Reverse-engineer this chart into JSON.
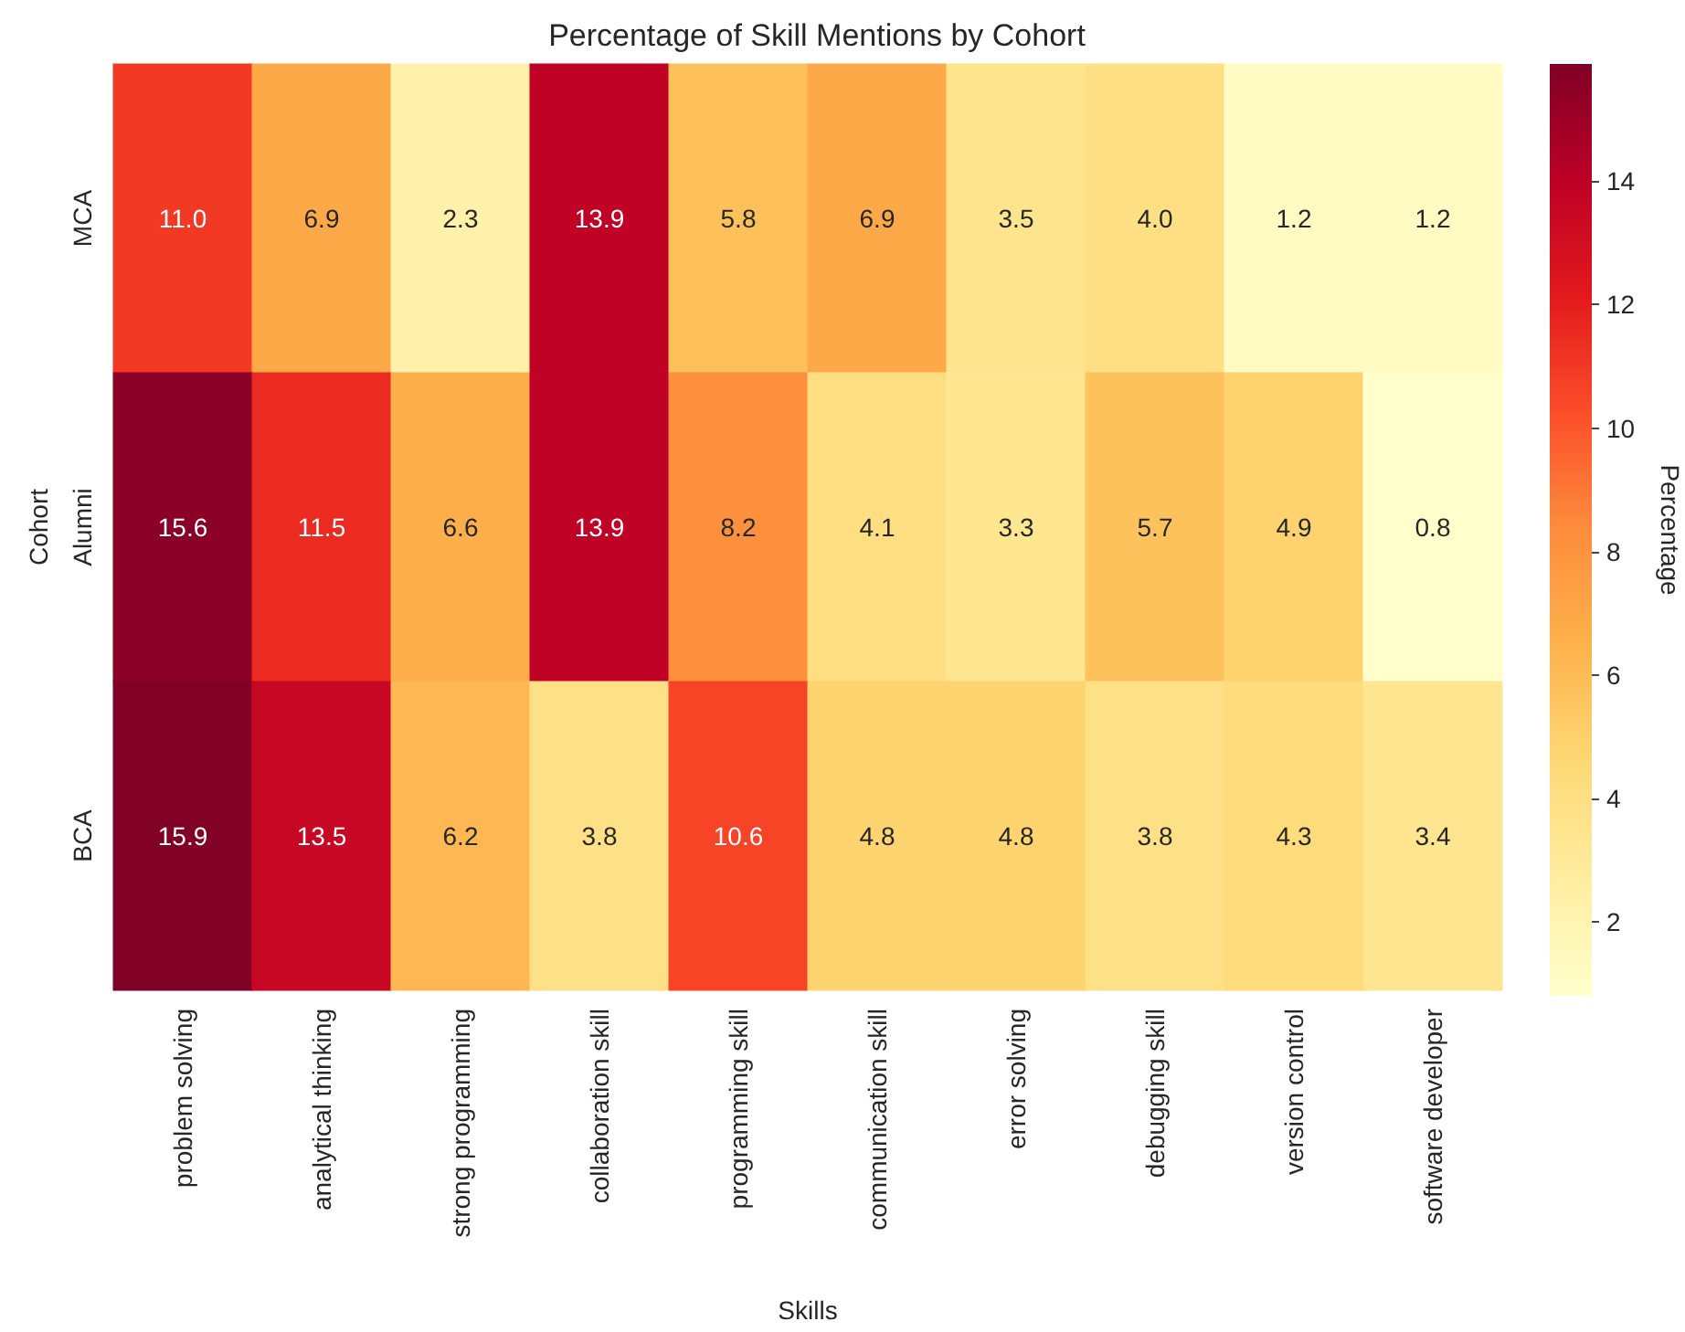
{
  "chart_data": {
    "type": "heatmap",
    "title": "Percentage of Skill Mentions by Cohort",
    "xlabel": "Skills",
    "ylabel": "Cohort",
    "clabel": "Percentage",
    "categories": [
      "problem solving",
      "analytical thinking",
      "strong programming",
      "collaboration skill",
      "programming skill",
      "communication skill",
      "error solving",
      "debugging skill",
      "version control",
      "software developer"
    ],
    "y_categories": [
      "MCA",
      "Alumni",
      "BCA"
    ],
    "cells": [
      [
        11.0,
        6.9,
        2.3,
        13.9,
        5.8,
        6.9,
        3.5,
        4.0,
        1.2,
        1.2
      ],
      [
        15.6,
        11.5,
        6.6,
        13.9,
        8.2,
        4.1,
        3.3,
        5.7,
        4.9,
        0.8
      ],
      [
        15.9,
        13.5,
        6.2,
        3.8,
        10.6,
        4.8,
        4.8,
        3.8,
        4.3,
        3.4
      ]
    ],
    "cell_labels": [
      [
        "11.0",
        "6.9",
        "2.3",
        "13.9",
        "5.8",
        "6.9",
        "3.5",
        "4.0",
        "1.2",
        "1.2"
      ],
      [
        "15.6",
        "11.5",
        "6.6",
        "13.9",
        "8.2",
        "4.1",
        "3.3",
        "5.7",
        "4.9",
        "0.8"
      ],
      [
        "15.9",
        "13.5",
        "6.2",
        "3.8",
        "10.6",
        "4.8",
        "4.8",
        "3.8",
        "4.3",
        "3.4"
      ]
    ],
    "clim": [
      0.8,
      15.9
    ],
    "cticks": [
      2,
      4,
      6,
      8,
      10,
      12,
      14
    ]
  }
}
